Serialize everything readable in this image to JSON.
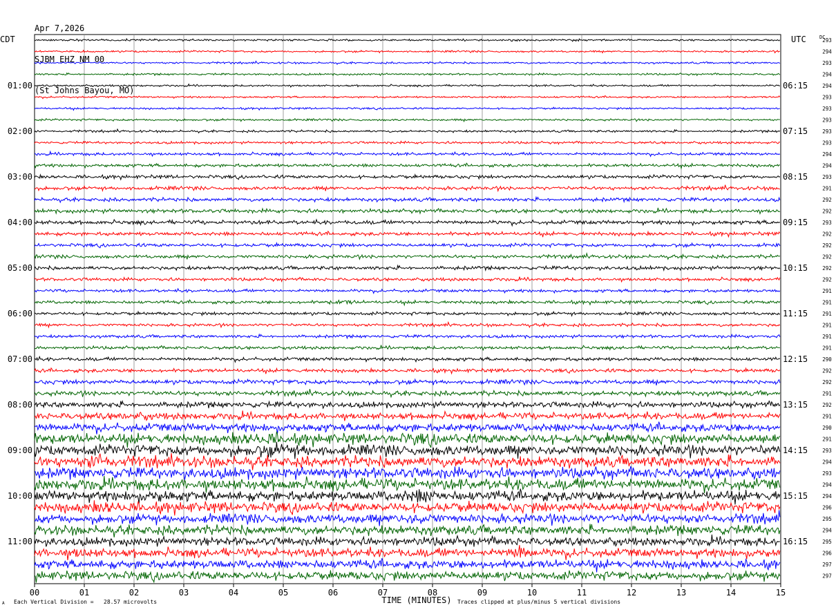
{
  "header": {
    "date": "Apr 7,2026",
    "station": "SJBM EHZ NM 00",
    "location": "(St Johns Bayou, MO)"
  },
  "left_tz": "CDT",
  "right_tz": "UTC",
  "dc_label": "DC",
  "footer": {
    "scale_note": "Each Vertical Division =   28.57 microvolts",
    "clip_note": "Traces clipped at plus/minus 5 vertical divisions",
    "corner_mark": "A"
  },
  "chart_data": {
    "type": "line",
    "title": "",
    "xlabel": "TIME (MINUTES)",
    "ylabel": "",
    "xlim": [
      0,
      15
    ],
    "x_ticks": [
      "00",
      "01",
      "02",
      "03",
      "04",
      "05",
      "06",
      "07",
      "08",
      "09",
      "10",
      "11",
      "12",
      "13",
      "14",
      "15"
    ],
    "grid": true,
    "trace_count": 48,
    "trace_colors": [
      "#000000",
      "#ff0000",
      "#0000ff",
      "#006400"
    ],
    "left_hour_labels": [
      "01:00",
      "02:00",
      "03:00",
      "04:00",
      "05:00",
      "06:00",
      "07:00",
      "08:00",
      "09:00",
      "10:00",
      "11:00"
    ],
    "right_hour_labels": [
      "06:15",
      "07:15",
      "08:15",
      "09:15",
      "10:15",
      "11:15",
      "12:15",
      "13:15",
      "14:15",
      "15:15",
      "16:15"
    ],
    "hour_label_every_n_traces": 4,
    "first_hour_label_trace": 4,
    "dc_offsets": [
      293,
      294,
      293,
      294,
      294,
      293,
      293,
      293,
      293,
      293,
      294,
      294,
      293,
      291,
      292,
      292,
      293,
      292,
      292,
      292,
      292,
      292,
      291,
      291,
      291,
      291,
      291,
      291,
      290,
      292,
      292,
      291,
      292,
      291,
      290,
      291,
      293,
      294,
      293,
      294,
      294,
      296,
      295,
      294,
      295,
      296,
      297,
      297
    ],
    "trace_amplitudes": [
      1.2,
      1.2,
      1.2,
      1.2,
      1.2,
      1.2,
      1.2,
      1.3,
      1.4,
      1.5,
      1.8,
      2.0,
      2.2,
      2.3,
      2.3,
      2.4,
      2.5,
      2.3,
      2.2,
      2.2,
      2.3,
      2.0,
      1.9,
      2.0,
      2.0,
      1.9,
      1.9,
      2.0,
      2.2,
      2.3,
      2.8,
      3.0,
      3.6,
      4.2,
      5.2,
      6.5,
      6.8,
      7.0,
      6.8,
      7.2,
      6.5,
      6.5,
      6.0,
      6.0,
      5.2,
      5.5,
      5.5,
      5.5
    ],
    "events": [
      {
        "trace": 23,
        "minute": 6.2,
        "width_min": 0.8,
        "gain": 1.8
      },
      {
        "trace": 33,
        "minute": 2.0,
        "width_min": 1.2,
        "gain": 1.3
      },
      {
        "trace": 35,
        "minute": 4.5,
        "width_min": 1.5,
        "gain": 1.5
      },
      {
        "trace": 35,
        "minute": 7.8,
        "width_min": 1.2,
        "gain": 1.3
      },
      {
        "trace": 36,
        "minute": 5.0,
        "width_min": 1.8,
        "gain": 1.4
      },
      {
        "trace": 37,
        "minute": 1.3,
        "width_min": 0.8,
        "gain": 1.8
      },
      {
        "trace": 40,
        "minute": 2.5,
        "width_min": 1.0,
        "gain": 1.3
      },
      {
        "trace": 40,
        "minute": 7.8,
        "width_min": 1.3,
        "gain": 1.5
      },
      {
        "trace": 41,
        "minute": 1.5,
        "width_min": 1.0,
        "gain": 1.5
      },
      {
        "trace": 42,
        "minute": 7.7,
        "width_min": 1.2,
        "gain": 1.5
      },
      {
        "trace": 44,
        "minute": 8.3,
        "width_min": 0.8,
        "gain": 1.3
      },
      {
        "trace": 45,
        "minute": 9.8,
        "width_min": 0.6,
        "gain": 2.2
      },
      {
        "trace": 45,
        "minute": 0.9,
        "width_min": 0.8,
        "gain": 1.4
      }
    ]
  }
}
